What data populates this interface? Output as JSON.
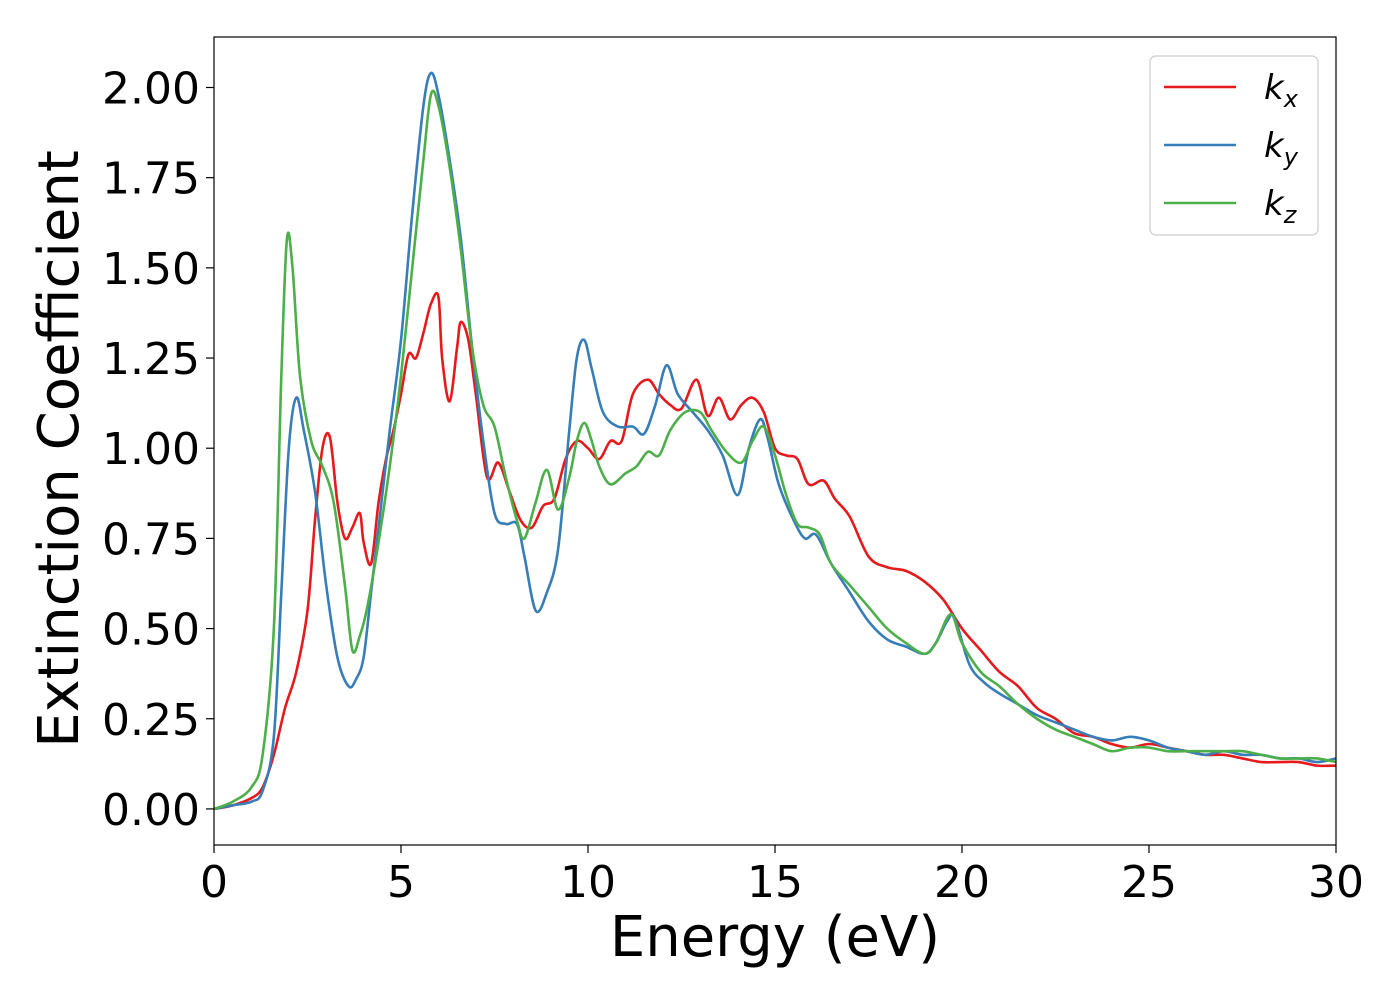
{
  "chart_data": {
    "type": "line",
    "xlabel": "Energy (eV)",
    "ylabel": "Extinction Coefficient",
    "xlim": [
      0,
      30
    ],
    "ylim": [
      -0.1,
      2.14
    ],
    "xticks": [
      0,
      5,
      10,
      15,
      20,
      25,
      30
    ],
    "xtick_labels": [
      "0",
      "5",
      "10",
      "15",
      "20",
      "25",
      "30"
    ],
    "yticks": [
      0,
      0.25,
      0.5,
      0.75,
      1.0,
      1.25,
      1.5,
      1.75,
      2.0
    ],
    "ytick_labels": [
      "0.00",
      "0.25",
      "0.50",
      "0.75",
      "1.00",
      "1.25",
      "1.50",
      "1.75",
      "2.00"
    ],
    "grid": false,
    "legend_position": "top-right",
    "series": [
      {
        "name": "kx",
        "legend_base": "k",
        "legend_sub": "x",
        "color": "#e41a1c",
        "x": [
          0,
          0.5,
          1.0,
          1.3,
          1.6,
          1.9,
          2.2,
          2.5,
          2.7,
          2.9,
          3.1,
          3.3,
          3.5,
          3.7,
          3.9,
          4.0,
          4.2,
          4.4,
          4.6,
          4.8,
          5.0,
          5.2,
          5.4,
          5.6,
          5.8,
          6.0,
          6.1,
          6.3,
          6.5,
          6.6,
          6.8,
          7.0,
          7.3,
          7.6,
          7.9,
          8.2,
          8.5,
          8.8,
          9.1,
          9.4,
          9.7,
          10.0,
          10.3,
          10.6,
          10.9,
          11.2,
          11.6,
          11.9,
          12.2,
          12.5,
          12.9,
          13.2,
          13.5,
          13.8,
          14.1,
          14.4,
          14.7,
          15.0,
          15.3,
          15.6,
          15.9,
          16.3,
          16.6,
          17.0,
          17.5,
          18.0,
          18.5,
          19.0,
          19.5,
          20.0,
          20.5,
          21.0,
          21.5,
          22.0,
          22.5,
          23.0,
          23.5,
          24.0,
          24.5,
          25.0,
          25.5,
          26.0,
          26.5,
          27.0,
          27.5,
          28.0,
          28.5,
          29.0,
          29.5,
          30.0
        ],
        "values": [
          0,
          0.01,
          0.03,
          0.06,
          0.15,
          0.28,
          0.38,
          0.55,
          0.8,
          1.0,
          1.03,
          0.85,
          0.75,
          0.78,
          0.82,
          0.74,
          0.68,
          0.85,
          0.97,
          1.05,
          1.15,
          1.26,
          1.25,
          1.32,
          1.4,
          1.42,
          1.25,
          1.13,
          1.28,
          1.35,
          1.3,
          1.15,
          0.92,
          0.96,
          0.88,
          0.8,
          0.78,
          0.84,
          0.86,
          0.97,
          1.02,
          1.0,
          0.97,
          1.02,
          1.02,
          1.15,
          1.19,
          1.15,
          1.12,
          1.11,
          1.19,
          1.09,
          1.14,
          1.08,
          1.12,
          1.14,
          1.1,
          1.0,
          0.98,
          0.97,
          0.9,
          0.91,
          0.86,
          0.81,
          0.7,
          0.67,
          0.66,
          0.63,
          0.58,
          0.5,
          0.44,
          0.38,
          0.34,
          0.28,
          0.25,
          0.21,
          0.2,
          0.18,
          0.17,
          0.18,
          0.17,
          0.16,
          0.15,
          0.15,
          0.14,
          0.13,
          0.13,
          0.13,
          0.12,
          0.12
        ]
      },
      {
        "name": "ky",
        "legend_base": "k",
        "legend_sub": "y",
        "color": "#377eb8",
        "x": [
          0,
          0.5,
          1.0,
          1.3,
          1.6,
          1.8,
          2.0,
          2.2,
          2.4,
          2.7,
          3.0,
          3.3,
          3.6,
          3.8,
          4.0,
          4.2,
          4.4,
          4.7,
          5.0,
          5.3,
          5.6,
          5.8,
          6.0,
          6.3,
          6.6,
          6.9,
          7.2,
          7.5,
          7.8,
          8.1,
          8.3,
          8.6,
          8.9,
          9.2,
          9.5,
          9.7,
          9.9,
          10.1,
          10.4,
          10.8,
          11.2,
          11.5,
          11.8,
          12.1,
          12.4,
          12.8,
          13.2,
          13.6,
          14.0,
          14.3,
          14.6,
          14.8,
          15.1,
          15.5,
          15.8,
          16.1,
          16.5,
          17.0,
          17.5,
          18.0,
          18.5,
          19.0,
          19.3,
          19.6,
          19.8,
          20.2,
          20.6,
          21.0,
          21.5,
          22.0,
          22.5,
          23.0,
          23.5,
          24.0,
          24.5,
          25.0,
          25.5,
          26.0,
          26.5,
          27.0,
          27.5,
          28.0,
          28.5,
          29.0,
          29.5,
          30.0
        ],
        "values": [
          0,
          0.01,
          0.02,
          0.05,
          0.2,
          0.6,
          1.0,
          1.14,
          1.05,
          0.88,
          0.62,
          0.42,
          0.34,
          0.36,
          0.42,
          0.6,
          0.78,
          1.05,
          1.3,
          1.65,
          1.95,
          2.04,
          1.98,
          1.8,
          1.58,
          1.28,
          1.02,
          0.82,
          0.79,
          0.79,
          0.7,
          0.55,
          0.6,
          0.72,
          1.05,
          1.25,
          1.3,
          1.22,
          1.1,
          1.06,
          1.06,
          1.04,
          1.12,
          1.23,
          1.15,
          1.1,
          1.05,
          0.98,
          0.87,
          1.0,
          1.08,
          1.03,
          0.9,
          0.8,
          0.75,
          0.76,
          0.68,
          0.6,
          0.52,
          0.47,
          0.45,
          0.43,
          0.46,
          0.52,
          0.53,
          0.4,
          0.35,
          0.32,
          0.29,
          0.26,
          0.24,
          0.22,
          0.2,
          0.19,
          0.2,
          0.19,
          0.17,
          0.16,
          0.15,
          0.16,
          0.15,
          0.15,
          0.14,
          0.14,
          0.13,
          0.14
        ]
      },
      {
        "name": "kz",
        "legend_base": "k",
        "legend_sub": "z",
        "color": "#4daf4a",
        "x": [
          0,
          0.5,
          1.0,
          1.3,
          1.6,
          1.8,
          1.95,
          2.1,
          2.3,
          2.6,
          2.9,
          3.2,
          3.5,
          3.7,
          3.9,
          4.1,
          4.4,
          4.7,
          5.0,
          5.3,
          5.6,
          5.8,
          6.0,
          6.3,
          6.6,
          6.9,
          7.2,
          7.5,
          7.8,
          8.1,
          8.3,
          8.6,
          8.9,
          9.2,
          9.5,
          9.7,
          9.9,
          10.1,
          10.3,
          10.6,
          11.0,
          11.3,
          11.6,
          11.9,
          12.2,
          12.6,
          13.0,
          13.3,
          13.7,
          14.1,
          14.4,
          14.7,
          15.0,
          15.3,
          15.6,
          15.9,
          16.2,
          16.5,
          17.0,
          17.5,
          18.0,
          18.5,
          19.0,
          19.3,
          19.7,
          20.0,
          20.5,
          21.0,
          21.5,
          22.0,
          22.5,
          23.0,
          23.5,
          24.0,
          24.5,
          25.0,
          25.5,
          26.0,
          26.5,
          27.0,
          27.5,
          28.0,
          28.5,
          29.0,
          29.5,
          30.0
        ],
        "values": [
          0,
          0.02,
          0.06,
          0.15,
          0.5,
          1.2,
          1.58,
          1.5,
          1.2,
          1.02,
          0.95,
          0.85,
          0.62,
          0.44,
          0.48,
          0.56,
          0.74,
          0.95,
          1.2,
          1.5,
          1.8,
          1.98,
          1.95,
          1.78,
          1.55,
          1.28,
          1.12,
          1.06,
          0.92,
          0.8,
          0.75,
          0.85,
          0.94,
          0.83,
          0.92,
          1.02,
          1.07,
          1.02,
          0.95,
          0.9,
          0.93,
          0.95,
          0.99,
          0.98,
          1.05,
          1.1,
          1.1,
          1.05,
          0.99,
          0.96,
          1.02,
          1.06,
          0.98,
          0.87,
          0.79,
          0.78,
          0.76,
          0.68,
          0.62,
          0.56,
          0.5,
          0.46,
          0.43,
          0.46,
          0.54,
          0.46,
          0.38,
          0.34,
          0.29,
          0.25,
          0.22,
          0.2,
          0.18,
          0.16,
          0.17,
          0.17,
          0.16,
          0.16,
          0.16,
          0.16,
          0.16,
          0.15,
          0.14,
          0.14,
          0.14,
          0.13
        ]
      }
    ]
  }
}
